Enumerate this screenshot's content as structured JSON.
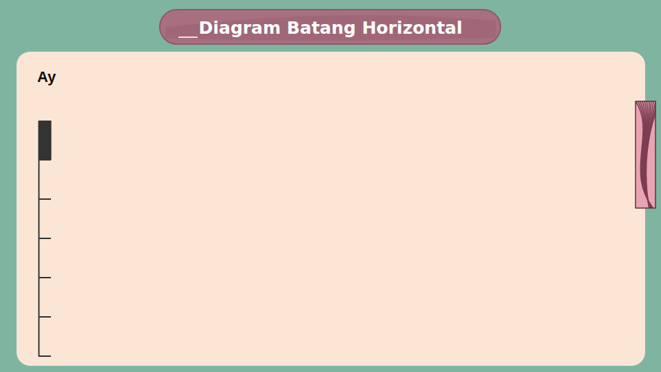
{
  "header": {
    "title": "Diagram Batang Horizontal"
  },
  "chart_data": {
    "type": "bar",
    "orientation": "horizontal",
    "title": "Ay",
    "categories": [
      null,
      null,
      null,
      null,
      null,
      null
    ],
    "values": [
      2.2,
      null,
      null,
      null,
      null,
      null
    ],
    "color": "#333333",
    "xlim": [
      0,
      100
    ],
    "tick_labels": false
  }
}
